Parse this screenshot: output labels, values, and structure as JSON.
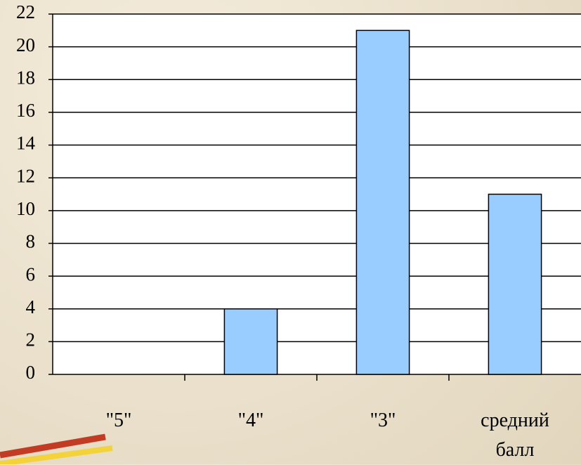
{
  "chart_data": {
    "type": "bar",
    "categories": [
      "\"5\"",
      "\"4\"",
      "\"3\"",
      "средний балл"
    ],
    "values": [
      0,
      4,
      21,
      11
    ],
    "color": "#99ccff",
    "ylim": [
      0,
      22
    ],
    "yticks": [
      0,
      2,
      4,
      6,
      8,
      10,
      12,
      14,
      16,
      18,
      20,
      22
    ],
    "grid": true
  }
}
